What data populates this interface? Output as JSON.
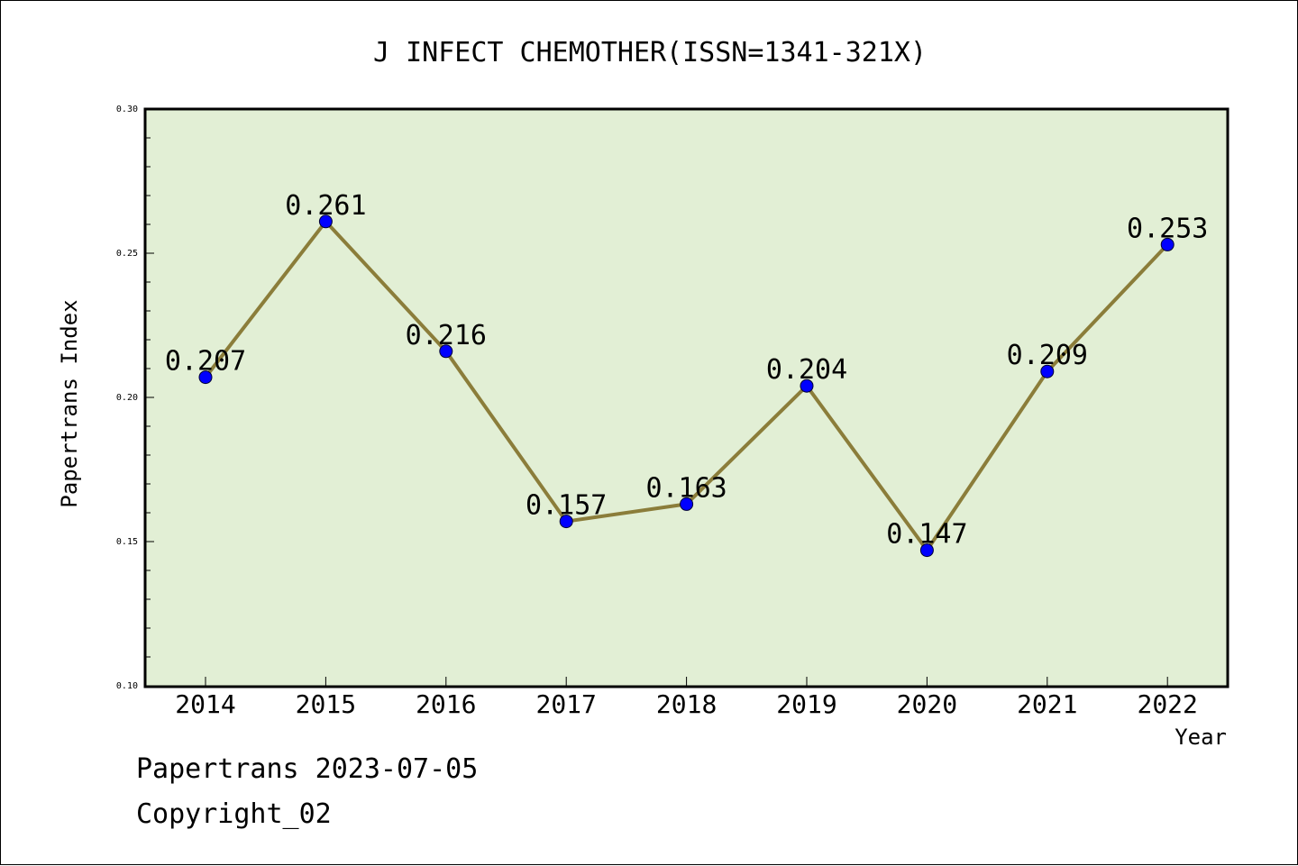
{
  "chart_data": {
    "type": "line",
    "title": "J INFECT CHEMOTHER(ISSN=1341-321X)",
    "xlabel": "Year",
    "ylabel": "Papertrans Index",
    "categories": [
      "2014",
      "2015",
      "2016",
      "2017",
      "2018",
      "2019",
      "2020",
      "2021",
      "2022"
    ],
    "values": [
      0.207,
      0.261,
      0.216,
      0.157,
      0.163,
      0.204,
      0.147,
      0.209,
      0.253
    ],
    "data_labels": [
      "0.207",
      "0.261",
      "0.216",
      "0.157",
      "0.163",
      "0.204",
      "0.147",
      "0.209",
      "0.253"
    ],
    "ylim": [
      0.1,
      0.3
    ],
    "yticks": [
      0.1,
      0.15,
      0.2,
      0.25,
      0.3
    ],
    "ytick_labels": [
      "0.10",
      "0.15",
      "0.20",
      "0.25",
      "0.30"
    ],
    "grid": false,
    "colors": {
      "plot_background": "#e2efd5",
      "line": "#8b7d3a",
      "marker": "#0000ff"
    }
  },
  "footer": {
    "line1": "Papertrans 2023-07-05",
    "line2": "Copyright_02"
  }
}
